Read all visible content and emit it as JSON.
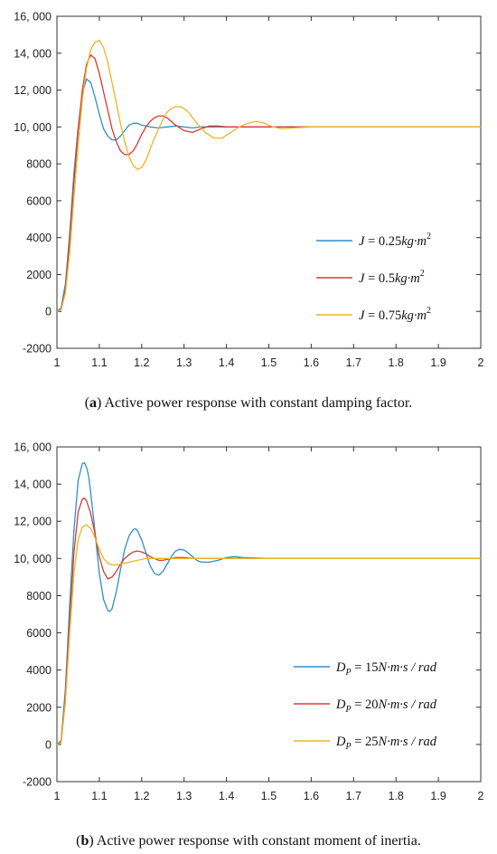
{
  "colors": {
    "blue": "#2f8fc8",
    "red": "#d63c32",
    "yellow": "#ecb427",
    "axis": "#333333"
  },
  "captions": [
    {
      "letter": "a",
      "open": "(",
      "close": ")",
      "text": " Active power response with constant damping factor."
    },
    {
      "letter": "b",
      "open": "(",
      "close": ")",
      "text": " Active power response with constant moment of inertia."
    }
  ],
  "chart_data": [
    {
      "type": "line",
      "title": "",
      "xlabel": "",
      "ylabel": "",
      "xlim": [
        1,
        2
      ],
      "ylim": [
        -2000,
        16000
      ],
      "xticks": [
        "1",
        "1.1",
        "1.2",
        "1.3",
        "1.4",
        "1.5",
        "1.6",
        "1.7",
        "1.8",
        "1.9",
        "2"
      ],
      "yticks": [
        "-2000",
        "0",
        "2000",
        "4000",
        "6000",
        "8000",
        "10, 000",
        "12, 000",
        "14, 000",
        "16, 000"
      ],
      "legend_position": "lower-right",
      "series": [
        {
          "name": "J = 0.25kg·m²",
          "legend": {
            "lhs": "J",
            "eq": " = 0.25",
            "unit": "kg·m",
            "sup": "2"
          },
          "color": "blue",
          "x": [
            1,
            1.01,
            1.02,
            1.03,
            1.04,
            1.05,
            1.06,
            1.07,
            1.08,
            1.09,
            1.1,
            1.11,
            1.12,
            1.13,
            1.14,
            1.15,
            1.16,
            1.17,
            1.18,
            1.19,
            1.2,
            1.22,
            1.24,
            1.26,
            1.28,
            1.3,
            1.32,
            1.34,
            1.36,
            1.38,
            1.4,
            1.45,
            1.5,
            2
          ],
          "y": [
            0,
            200,
            1500,
            4200,
            7500,
            10000,
            11800,
            12600,
            12400,
            11600,
            10700,
            9900,
            9500,
            9300,
            9300,
            9500,
            9800,
            10100,
            10200,
            10200,
            10100,
            10000,
            9950,
            10000,
            10050,
            10000,
            9950,
            10000,
            10000,
            10000,
            10000,
            10000,
            10000,
            10000
          ]
        },
        {
          "name": "J = 0.5kg·m²",
          "legend": {
            "lhs": "J",
            "eq": " = 0.5",
            "unit": "kg·m",
            "sup": "2"
          },
          "color": "red",
          "x": [
            1,
            1.01,
            1.02,
            1.03,
            1.04,
            1.05,
            1.06,
            1.07,
            1.08,
            1.09,
            1.1,
            1.11,
            1.12,
            1.13,
            1.14,
            1.15,
            1.16,
            1.17,
            1.18,
            1.19,
            1.2,
            1.21,
            1.22,
            1.23,
            1.24,
            1.25,
            1.26,
            1.27,
            1.28,
            1.3,
            1.32,
            1.34,
            1.36,
            1.38,
            1.4,
            1.45,
            1.5,
            2
          ],
          "y": [
            0,
            100,
            1200,
            3800,
            7000,
            9800,
            12000,
            13400,
            13900,
            13700,
            12900,
            11900,
            10900,
            9900,
            9200,
            8700,
            8500,
            8500,
            8700,
            9100,
            9600,
            10000,
            10300,
            10500,
            10600,
            10600,
            10500,
            10300,
            10100,
            9800,
            9700,
            9900,
            10050,
            10050,
            10000,
            10000,
            10000,
            10000
          ]
        },
        {
          "name": "J = 0.75kg·m²",
          "legend": {
            "lhs": "J",
            "eq": " = 0.75",
            "unit": "kg·m",
            "sup": "2"
          },
          "color": "yellow",
          "x": [
            1,
            1.01,
            1.02,
            1.03,
            1.04,
            1.05,
            1.06,
            1.07,
            1.08,
            1.09,
            1.1,
            1.11,
            1.12,
            1.13,
            1.14,
            1.15,
            1.16,
            1.17,
            1.18,
            1.19,
            1.2,
            1.21,
            1.22,
            1.23,
            1.24,
            1.25,
            1.26,
            1.27,
            1.28,
            1.29,
            1.3,
            1.31,
            1.32,
            1.33,
            1.35,
            1.37,
            1.39,
            1.41,
            1.43,
            1.45,
            1.47,
            1.49,
            1.51,
            1.53,
            1.56,
            1.6,
            2
          ],
          "y": [
            0,
            100,
            1000,
            3200,
            6200,
            9000,
            11500,
            13200,
            14200,
            14600,
            14700,
            14300,
            13500,
            12400,
            11300,
            10200,
            9200,
            8400,
            7900,
            7700,
            7800,
            8200,
            8800,
            9400,
            9900,
            10400,
            10800,
            11000,
            11100,
            11100,
            11000,
            10800,
            10500,
            10200,
            9700,
            9400,
            9400,
            9700,
            10000,
            10200,
            10300,
            10200,
            10000,
            9900,
            9950,
            10000,
            10000
          ]
        }
      ]
    },
    {
      "type": "line",
      "title": "",
      "xlabel": "",
      "ylabel": "",
      "xlim": [
        1,
        2
      ],
      "ylim": [
        -2000,
        16000
      ],
      "xticks": [
        "1",
        "1.1",
        "1.2",
        "1.3",
        "1.4",
        "1.5",
        "1.6",
        "1.7",
        "1.8",
        "1.9",
        "2"
      ],
      "yticks": [
        "-2000",
        "0",
        "2000",
        "4000",
        "6000",
        "8000",
        "10, 000",
        "12, 000",
        "14, 000",
        "16, 000"
      ],
      "legend_position": "lower-right",
      "series": [
        {
          "name": "Dp = 15N·m·s / rad",
          "legend": {
            "lhs": "D",
            "sub": "P",
            "eq": " = 15",
            "unit": "N·m·s / rad"
          },
          "color": "blue",
          "x": [
            1,
            1.01,
            1.02,
            1.03,
            1.04,
            1.05,
            1.06,
            1.065,
            1.07,
            1.075,
            1.08,
            1.09,
            1.1,
            1.11,
            1.12,
            1.125,
            1.13,
            1.14,
            1.15,
            1.16,
            1.17,
            1.18,
            1.185,
            1.19,
            1.2,
            1.21,
            1.22,
            1.23,
            1.24,
            1.25,
            1.26,
            1.27,
            1.28,
            1.29,
            1.3,
            1.31,
            1.32,
            1.33,
            1.34,
            1.36,
            1.38,
            1.4,
            1.42,
            1.44,
            1.5,
            2
          ],
          "y": [
            0,
            200,
            3000,
            7500,
            11500,
            14200,
            15100,
            15150,
            14900,
            14400,
            13500,
            11400,
            9200,
            7800,
            7200,
            7150,
            7300,
            8200,
            9400,
            10500,
            11200,
            11550,
            11600,
            11500,
            11000,
            10300,
            9600,
            9200,
            9100,
            9300,
            9700,
            10100,
            10400,
            10500,
            10450,
            10300,
            10100,
            9900,
            9800,
            9800,
            9900,
            10050,
            10100,
            10050,
            10000,
            10000
          ]
        },
        {
          "name": "Dp = 20N·m·s / rad",
          "legend": {
            "lhs": "D",
            "sub": "P",
            "eq": " = 20",
            "unit": "N·m·s / rad"
          },
          "color": "red",
          "x": [
            1,
            1.01,
            1.02,
            1.03,
            1.04,
            1.05,
            1.06,
            1.065,
            1.07,
            1.08,
            1.09,
            1.1,
            1.11,
            1.12,
            1.13,
            1.14,
            1.15,
            1.16,
            1.17,
            1.18,
            1.19,
            1.2,
            1.21,
            1.22,
            1.23,
            1.24,
            1.25,
            1.26,
            1.28,
            1.3,
            1.32,
            1.35,
            2
          ],
          "y": [
            0,
            150,
            2600,
            6600,
            10300,
            12500,
            13200,
            13250,
            13100,
            12400,
            11300,
            10100,
            9300,
            8900,
            9000,
            9300,
            9700,
            10000,
            10200,
            10350,
            10400,
            10350,
            10250,
            10100,
            10000,
            9900,
            9900,
            9950,
            10050,
            10050,
            10000,
            10000,
            10000
          ]
        },
        {
          "name": "Dp = 25N·m·s / rad",
          "legend": {
            "lhs": "D",
            "sub": "P",
            "eq": " = 25",
            "unit": "N·m·s / rad"
          },
          "color": "yellow",
          "x": [
            1,
            1.01,
            1.02,
            1.03,
            1.04,
            1.05,
            1.06,
            1.07,
            1.08,
            1.09,
            1.1,
            1.11,
            1.12,
            1.13,
            1.14,
            1.15,
            1.16,
            1.17,
            1.18,
            1.19,
            1.2,
            1.21,
            1.22,
            1.24,
            1.26,
            1.3,
            2
          ],
          "y": [
            0,
            100,
            2300,
            6000,
            9200,
            11000,
            11700,
            11800,
            11600,
            11100,
            10500,
            10000,
            9750,
            9650,
            9650,
            9700,
            9750,
            9800,
            9850,
            9900,
            9950,
            10000,
            10000,
            10000,
            10000,
            10000,
            10000
          ]
        }
      ]
    }
  ]
}
